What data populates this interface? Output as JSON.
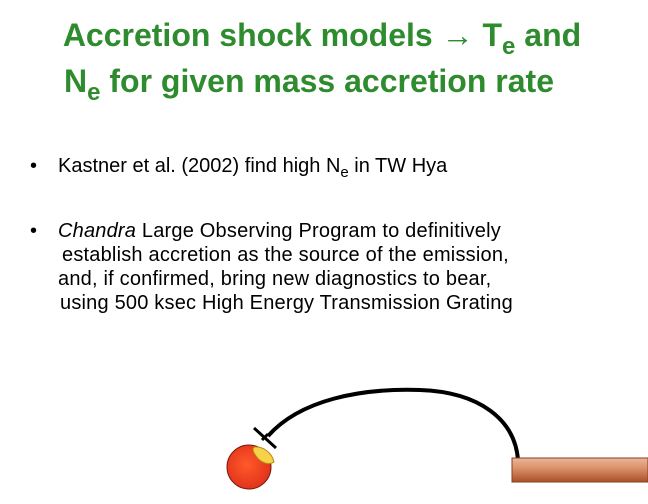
{
  "title": {
    "line1_pre": "Accretion shock models → T",
    "line1_sub": "e",
    "line1_post": " and",
    "line2_pre": "N",
    "line2_sub": "e",
    "line2_post": " for given mass accretion rate"
  },
  "bullets": {
    "symbol": "•",
    "b1_pre": "Kastner et al. (2002) find high N",
    "b1_sub": "e",
    "b1_post": " in TW Hya",
    "b2_italic": "Chandra",
    "b2_line1_rest": " Large Observing Program to definitively",
    "b2_line2": "establish accretion as the source of the emission,",
    "b2_line3": "and, if confirmed, bring new diagnostics to bear,",
    "b2_line4": "using 500 ksec High Energy Transmission Grating"
  },
  "colors": {
    "title": "#2e8b2e",
    "star": "#e83a1c",
    "hotspot": "#f5d24a",
    "disk_light": "#e2a98a",
    "disk_dark": "#b5603a"
  },
  "icons": {
    "star": "star-icon",
    "accretion_arc": "accretion-arc-icon",
    "disk": "disk-icon"
  }
}
